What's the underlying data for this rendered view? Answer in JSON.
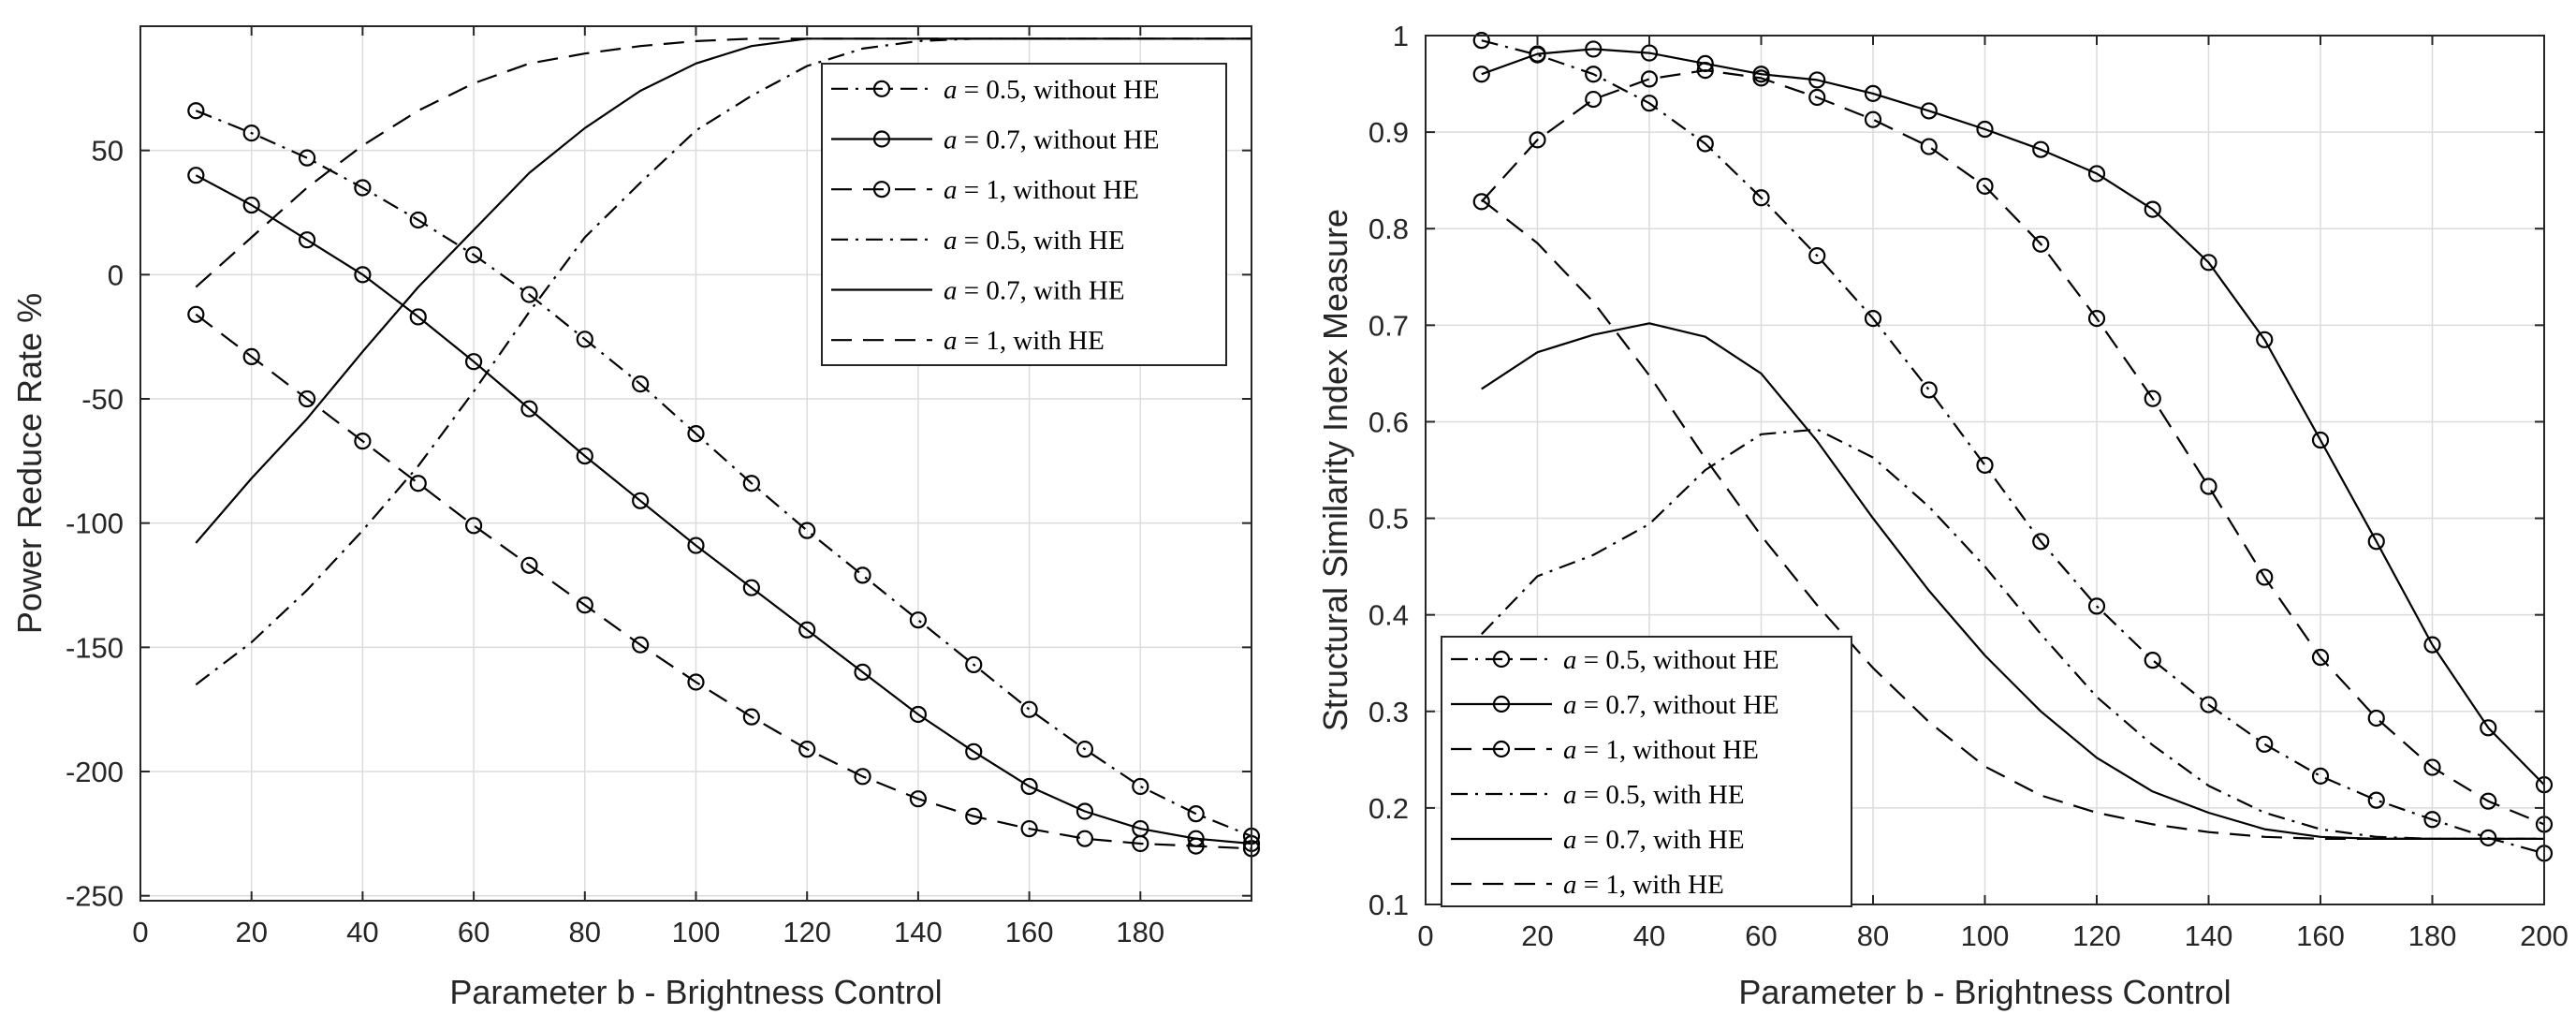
{
  "chart_data": [
    {
      "type": "line",
      "title": "",
      "xlabel": "Parameter  b - Brightness Control",
      "ylabel": "Power Reduce Rate %",
      "xlim": [
        0,
        200
      ],
      "ylim": [
        -252,
        100
      ],
      "xticks": [
        0,
        20,
        40,
        60,
        80,
        100,
        120,
        140,
        160,
        180
      ],
      "xtick_labels": [
        "0",
        "20",
        "40",
        "60",
        "80",
        "100",
        "120",
        "140",
        "160",
        "180"
      ],
      "yticks": [
        -250,
        -200,
        -150,
        -100,
        -50,
        0,
        50
      ],
      "ytick_labels": [
        "-250",
        "-200",
        "-150",
        "-100",
        "-50",
        "0",
        "50"
      ],
      "grid": true,
      "legend_position": "top-right",
      "series": [
        {
          "name": "a = 0.5, without HE",
          "legend_pre": "a",
          "legend_post": " = 0.5, without HE",
          "style": "dashdot",
          "marker": "circle",
          "x": [
            10,
            20,
            30,
            40,
            50,
            60,
            70,
            80,
            90,
            100,
            110,
            120,
            130,
            140,
            150,
            160,
            170,
            180,
            190,
            200
          ],
          "y": [
            66,
            57,
            47,
            35,
            22,
            8,
            -8,
            -26,
            -44,
            -64,
            -84,
            -103,
            -121,
            -139,
            -157,
            -175,
            -191,
            -206,
            -217,
            -226
          ]
        },
        {
          "name": "a = 0.7, without HE",
          "legend_pre": "a",
          "legend_post": " = 0.7, without HE",
          "style": "solid",
          "marker": "circle",
          "x": [
            10,
            20,
            30,
            40,
            50,
            60,
            70,
            80,
            90,
            100,
            110,
            120,
            130,
            140,
            150,
            160,
            170,
            180,
            190,
            200
          ],
          "y": [
            40,
            28,
            14,
            0,
            -17,
            -35,
            -54,
            -73,
            -91,
            -109,
            -126,
            -143,
            -160,
            -177,
            -192,
            -206,
            -216,
            -223,
            -227,
            -229
          ]
        },
        {
          "name": "a = 1, without HE",
          "legend_pre": "a",
          "legend_post": " = 1, without HE",
          "style": "dashed",
          "marker": "circle",
          "x": [
            10,
            20,
            30,
            40,
            50,
            60,
            70,
            80,
            90,
            100,
            110,
            120,
            130,
            140,
            150,
            160,
            170,
            180,
            190,
            200
          ],
          "y": [
            -16,
            -33,
            -50,
            -67,
            -84,
            -101,
            -117,
            -133,
            -149,
            -164,
            -178,
            -191,
            -202,
            -211,
            -218,
            -223,
            -227,
            -229,
            -230,
            -231
          ]
        },
        {
          "name": "a = 0.5, with HE",
          "legend_pre": "a",
          "legend_post": " = 0.5, with HE",
          "style": "dashdot",
          "marker": "none",
          "x": [
            10,
            20,
            30,
            40,
            50,
            60,
            70,
            80,
            90,
            100,
            110,
            120,
            130,
            140,
            150,
            160,
            170,
            180,
            190,
            200
          ],
          "y": [
            -165,
            -148,
            -127,
            -103,
            -77,
            -47,
            -15,
            15,
            37,
            58,
            72,
            84,
            91,
            94,
            95,
            95,
            95,
            95,
            95,
            95
          ]
        },
        {
          "name": "a = 0.7, with HE",
          "legend_pre": "a",
          "legend_post": " = 0.7, with HE",
          "style": "solid",
          "marker": "none",
          "x": [
            10,
            20,
            30,
            40,
            50,
            60,
            70,
            80,
            90,
            100,
            110,
            120,
            130,
            140,
            150,
            160,
            170,
            180,
            190,
            200
          ],
          "y": [
            -108,
            -82,
            -58,
            -31,
            -5,
            18,
            41,
            59,
            74,
            85,
            92,
            95,
            95,
            95,
            95,
            95,
            95,
            95,
            95,
            95
          ]
        },
        {
          "name": "a = 1, with HE",
          "legend_pre": "a",
          "legend_post": " = 1, with HE",
          "style": "dashed",
          "marker": "none",
          "x": [
            10,
            20,
            30,
            40,
            50,
            60,
            70,
            80,
            90,
            100,
            110,
            120,
            130,
            140,
            150,
            160,
            170,
            180,
            190,
            200
          ],
          "y": [
            -5,
            15,
            35,
            52,
            66,
            77,
            85,
            89,
            92,
            94,
            95,
            95,
            95,
            95,
            95,
            95,
            95,
            95,
            95,
            95
          ]
        }
      ]
    },
    {
      "type": "line",
      "title": "",
      "xlabel": "Parameter  b - Brightness Control",
      "ylabel": "Structural Similarity Index Measure",
      "xlim": [
        0,
        200
      ],
      "ylim": [
        0.1,
        1.0
      ],
      "xticks": [
        0,
        20,
        40,
        60,
        80,
        100,
        120,
        140,
        160,
        180,
        200
      ],
      "xtick_labels": [
        "0",
        "20",
        "40",
        "60",
        "80",
        "100",
        "120",
        "140",
        "160",
        "180",
        "200"
      ],
      "yticks": [
        0.1,
        0.2,
        0.3,
        0.4,
        0.5,
        0.6,
        0.7,
        0.8,
        0.9,
        1.0
      ],
      "ytick_labels": [
        "0.1",
        "0.2",
        "0.3",
        "0.4",
        "0.5",
        "0.6",
        "0.7",
        "0.8",
        "0.9",
        "1"
      ],
      "grid": true,
      "legend_position": "bottom-left",
      "series": [
        {
          "name": "a = 0.5, without HE",
          "legend_pre": "a",
          "legend_post": " = 0.5, without HE",
          "style": "dashdot",
          "marker": "circle",
          "x": [
            10,
            20,
            30,
            40,
            50,
            60,
            70,
            80,
            90,
            100,
            110,
            120,
            130,
            140,
            150,
            160,
            170,
            180,
            190,
            200
          ],
          "y": [
            0.995,
            0.98,
            0.96,
            0.93,
            0.888,
            0.832,
            0.772,
            0.707,
            0.633,
            0.555,
            0.476,
            0.409,
            0.353,
            0.307,
            0.266,
            0.233,
            0.208,
            0.188,
            0.169,
            0.153
          ]
        },
        {
          "name": "a = 0.7, without HE",
          "legend_pre": "a",
          "legend_post": " = 0.7, without HE",
          "style": "solid",
          "marker": "circle",
          "x": [
            10,
            20,
            30,
            40,
            50,
            60,
            70,
            80,
            90,
            100,
            110,
            120,
            130,
            140,
            150,
            160,
            170,
            180,
            190,
            200
          ],
          "y": [
            0.96,
            0.981,
            0.986,
            0.982,
            0.971,
            0.96,
            0.954,
            0.94,
            0.922,
            0.903,
            0.882,
            0.857,
            0.82,
            0.765,
            0.685,
            0.581,
            0.476,
            0.369,
            0.283,
            0.224
          ]
        },
        {
          "name": "a = 1, without HE",
          "legend_pre": "a",
          "legend_post": " = 1, without HE",
          "style": "dashed",
          "marker": "circle",
          "x": [
            10,
            20,
            30,
            40,
            50,
            60,
            70,
            80,
            90,
            100,
            110,
            120,
            130,
            140,
            150,
            160,
            170,
            180,
            190,
            200
          ],
          "y": [
            0.828,
            0.892,
            0.934,
            0.955,
            0.964,
            0.956,
            0.936,
            0.913,
            0.885,
            0.844,
            0.784,
            0.707,
            0.624,
            0.533,
            0.439,
            0.356,
            0.293,
            0.242,
            0.207,
            0.183
          ]
        },
        {
          "name": "a = 0.5, with HE",
          "legend_pre": "a",
          "legend_post": " = 0.5, with HE",
          "style": "dashdot",
          "marker": "none",
          "x": [
            10,
            20,
            30,
            40,
            50,
            60,
            70,
            80,
            90,
            100,
            110,
            120,
            130,
            140,
            150,
            160,
            170,
            180,
            190,
            200
          ],
          "y": [
            0.38,
            0.44,
            0.462,
            0.494,
            0.55,
            0.587,
            0.592,
            0.563,
            0.512,
            0.45,
            0.38,
            0.315,
            0.265,
            0.223,
            0.195,
            0.178,
            0.17,
            0.168,
            0.168,
            0.168
          ]
        },
        {
          "name": "a = 0.7, with HE",
          "legend_pre": "a",
          "legend_post": " = 0.7, with HE",
          "style": "solid",
          "marker": "none",
          "x": [
            10,
            20,
            30,
            40,
            50,
            60,
            70,
            80,
            90,
            100,
            110,
            120,
            130,
            140,
            150,
            160,
            170,
            180,
            190,
            200
          ],
          "y": [
            0.634,
            0.672,
            0.69,
            0.702,
            0.688,
            0.65,
            0.58,
            0.5,
            0.425,
            0.358,
            0.3,
            0.252,
            0.217,
            0.195,
            0.178,
            0.17,
            0.168,
            0.168,
            0.168,
            0.168
          ]
        },
        {
          "name": "a = 1, with HE",
          "legend_pre": "a",
          "legend_post": " = 1, with HE",
          "style": "dashed",
          "marker": "none",
          "x": [
            10,
            20,
            30,
            40,
            50,
            60,
            70,
            80,
            90,
            100,
            110,
            120,
            130,
            140,
            150,
            160,
            170,
            180,
            190,
            200
          ],
          "y": [
            0.83,
            0.785,
            0.724,
            0.648,
            0.562,
            0.482,
            0.41,
            0.345,
            0.289,
            0.243,
            0.213,
            0.195,
            0.183,
            0.175,
            0.17,
            0.168,
            0.168,
            0.168,
            0.168,
            0.168
          ]
        }
      ]
    }
  ]
}
